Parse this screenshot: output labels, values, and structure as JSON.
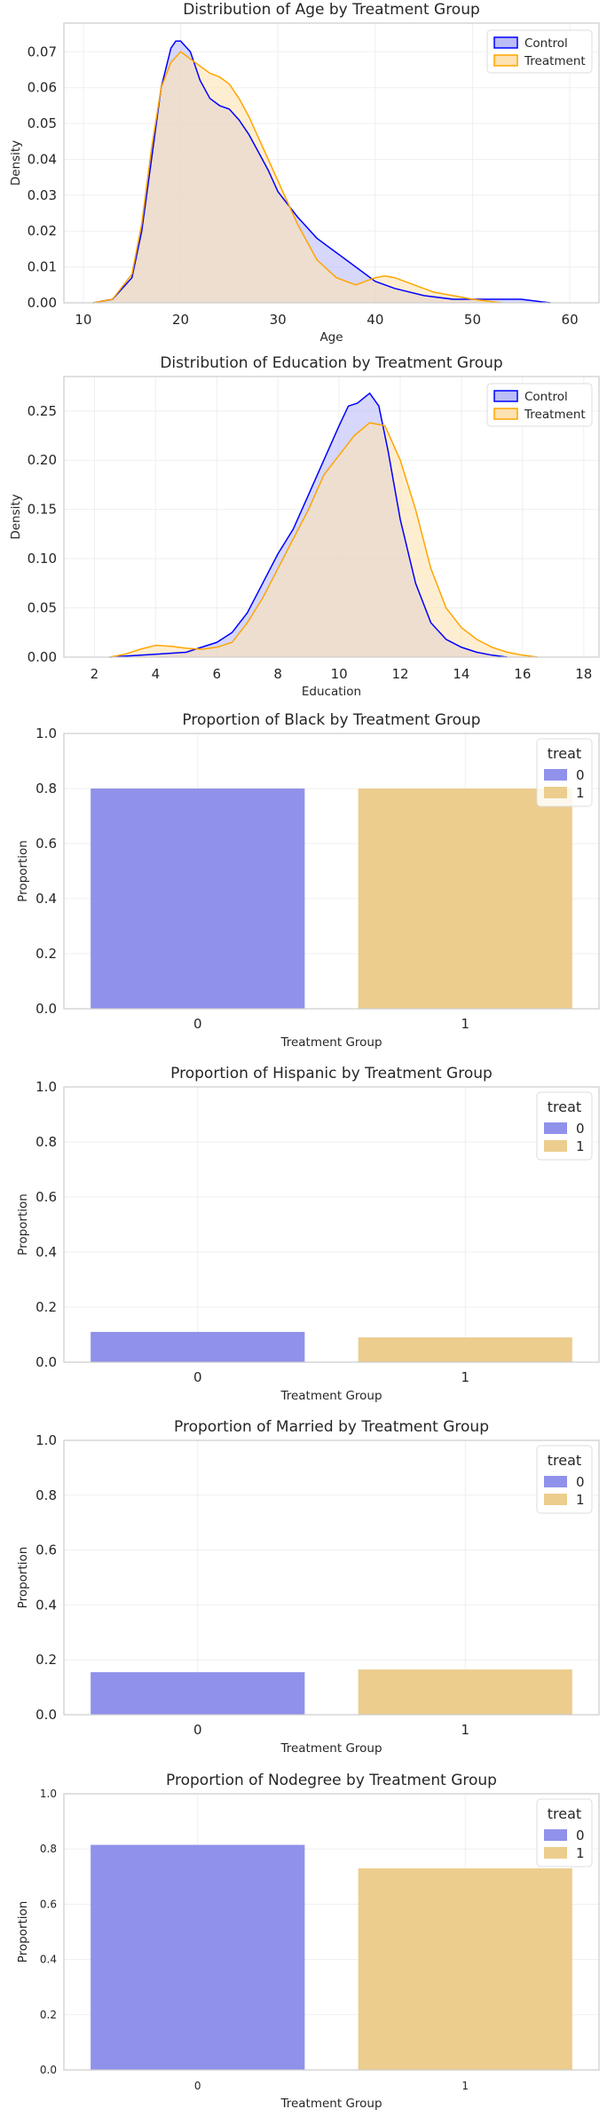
{
  "chart_data": [
    {
      "type": "area",
      "title": "Distribution of Age by Treatment Group",
      "xlabel": "Age",
      "ylabel": "Density",
      "xlim": [
        8,
        63
      ],
      "ylim": [
        0,
        0.078
      ],
      "xticks": [
        10,
        20,
        30,
        40,
        50,
        60
      ],
      "yticks": [
        0.0,
        0.01,
        0.02,
        0.03,
        0.04,
        0.05,
        0.06,
        0.07
      ],
      "xtick_labels": [
        "10",
        "20",
        "30",
        "40",
        "50",
        "60"
      ],
      "ytick_labels": [
        "0.00",
        "0.01",
        "0.02",
        "0.03",
        "0.04",
        "0.05",
        "0.06",
        "0.07"
      ],
      "legend": {
        "placement": "top-right",
        "entries": [
          "Control",
          "Treatment"
        ]
      },
      "series": [
        {
          "name": "Control",
          "color": "#0000ff",
          "fill": "#bbbdf6",
          "x": [
            11,
            13,
            15,
            16,
            17,
            18,
            19,
            19.5,
            20,
            21,
            22,
            23,
            24,
            25,
            26,
            27,
            28,
            29,
            30,
            32,
            34,
            36,
            38,
            40,
            42,
            45,
            48,
            50,
            52,
            55,
            57,
            58
          ],
          "y": [
            0,
            0.001,
            0.007,
            0.02,
            0.04,
            0.06,
            0.071,
            0.073,
            0.073,
            0.07,
            0.062,
            0.057,
            0.055,
            0.054,
            0.051,
            0.047,
            0.042,
            0.037,
            0.031,
            0.024,
            0.018,
            0.014,
            0.01,
            0.006,
            0.004,
            0.002,
            0.001,
            0.001,
            0.001,
            0.001,
            0.0003,
            0
          ]
        },
        {
          "name": "Treatment",
          "color": "#ffa500",
          "fill": "#fde2b2",
          "x": [
            11,
            13,
            15,
            16,
            17,
            18,
            19,
            20,
            21,
            22,
            23,
            24,
            25,
            26,
            27,
            28,
            30,
            32,
            34,
            36,
            38,
            40,
            41,
            42,
            44,
            46,
            48,
            50,
            52,
            53
          ],
          "y": [
            0,
            0.001,
            0.008,
            0.022,
            0.043,
            0.06,
            0.067,
            0.07,
            0.068,
            0.066,
            0.064,
            0.063,
            0.061,
            0.057,
            0.052,
            0.046,
            0.034,
            0.022,
            0.012,
            0.007,
            0.005,
            0.007,
            0.0075,
            0.007,
            0.005,
            0.003,
            0.002,
            0.001,
            0.0003,
            0
          ]
        }
      ]
    },
    {
      "type": "area",
      "title": "Distribution of Education by Treatment Group",
      "xlabel": "Education",
      "ylabel": "Density",
      "xlim": [
        1,
        18.5
      ],
      "ylim": [
        0,
        0.285
      ],
      "xticks": [
        2,
        4,
        6,
        8,
        10,
        12,
        14,
        16,
        18
      ],
      "yticks": [
        0.0,
        0.05,
        0.1,
        0.15,
        0.2,
        0.25
      ],
      "xtick_labels": [
        "2",
        "4",
        "6",
        "8",
        "10",
        "12",
        "14",
        "16",
        "18"
      ],
      "ytick_labels": [
        "0.00",
        "0.05",
        "0.10",
        "0.15",
        "0.20",
        "0.25"
      ],
      "legend": {
        "placement": "top-right",
        "entries": [
          "Control",
          "Treatment"
        ]
      },
      "series": [
        {
          "name": "Control",
          "color": "#0000ff",
          "fill": "#bbbdf6",
          "x": [
            2.5,
            3,
            4,
            5,
            5.5,
            6,
            6.5,
            7,
            7.5,
            8,
            8.5,
            9,
            9.5,
            10,
            10.3,
            10.6,
            11,
            11.3,
            11.6,
            12,
            12.5,
            13,
            13.5,
            14,
            14.5,
            15,
            15.5
          ],
          "y": [
            0,
            0.001,
            0.003,
            0.005,
            0.01,
            0.015,
            0.025,
            0.045,
            0.075,
            0.105,
            0.13,
            0.165,
            0.2,
            0.235,
            0.255,
            0.258,
            0.268,
            0.255,
            0.21,
            0.14,
            0.075,
            0.035,
            0.018,
            0.01,
            0.005,
            0.002,
            0
          ]
        },
        {
          "name": "Treatment",
          "color": "#ffa500",
          "fill": "#fde2b2",
          "x": [
            2.5,
            3,
            3.5,
            4,
            4.5,
            5,
            5.5,
            6,
            6.5,
            7,
            7.5,
            8,
            8.5,
            9,
            9.5,
            10,
            10.5,
            11,
            11.5,
            12,
            12.5,
            13,
            13.5,
            14,
            14.5,
            15,
            15.5,
            16,
            16.5
          ],
          "y": [
            0,
            0.003,
            0.008,
            0.012,
            0.011,
            0.009,
            0.008,
            0.01,
            0.015,
            0.035,
            0.06,
            0.09,
            0.12,
            0.15,
            0.185,
            0.205,
            0.225,
            0.238,
            0.235,
            0.2,
            0.15,
            0.09,
            0.05,
            0.03,
            0.018,
            0.01,
            0.005,
            0.002,
            0
          ]
        }
      ]
    },
    {
      "type": "bar",
      "title": "Proportion of Black by Treatment Group",
      "xlabel": "Treatment Group",
      "ylabel": "Proportion",
      "categories": [
        "0",
        "1"
      ],
      "values": [
        0.8,
        0.8
      ],
      "colors": [
        "#9091ea",
        "#eccd8e"
      ],
      "ylim": [
        0,
        1.0
      ],
      "yticks": [
        0.0,
        0.2,
        0.4,
        0.6,
        0.8,
        1.0
      ],
      "ytick_labels": [
        "0.0",
        "0.2",
        "0.4",
        "0.6",
        "0.8",
        "1.0"
      ],
      "legend": {
        "placement": "top-right",
        "title": "treat",
        "entries": [
          "0",
          "1"
        ]
      }
    },
    {
      "type": "bar",
      "title": "Proportion of Hispanic by Treatment Group",
      "xlabel": "Treatment Group",
      "ylabel": "Proportion",
      "categories": [
        "0",
        "1"
      ],
      "values": [
        0.11,
        0.09
      ],
      "colors": [
        "#9091ea",
        "#eccd8e"
      ],
      "ylim": [
        0,
        1.0
      ],
      "yticks": [
        0.0,
        0.2,
        0.4,
        0.6,
        0.8,
        1.0
      ],
      "ytick_labels": [
        "0.0",
        "0.2",
        "0.4",
        "0.6",
        "0.8",
        "1.0"
      ],
      "legend": {
        "placement": "top-right",
        "title": "treat",
        "entries": [
          "0",
          "1"
        ]
      }
    },
    {
      "type": "bar",
      "title": "Proportion of Married by Treatment Group",
      "xlabel": "Treatment Group",
      "ylabel": "Proportion",
      "categories": [
        "0",
        "1"
      ],
      "values": [
        0.155,
        0.165
      ],
      "colors": [
        "#9091ea",
        "#eccd8e"
      ],
      "ylim": [
        0,
        1.0
      ],
      "yticks": [
        0.0,
        0.2,
        0.4,
        0.6,
        0.8,
        1.0
      ],
      "ytick_labels": [
        "0.0",
        "0.2",
        "0.4",
        "0.6",
        "0.8",
        "1.0"
      ],
      "legend": {
        "placement": "top-right",
        "title": "treat",
        "entries": [
          "0",
          "1"
        ]
      }
    },
    {
      "type": "bar",
      "title": "Proportion of Nodegree by Treatment Group",
      "xlabel": "Treatment Group",
      "ylabel": "Proportion",
      "categories": [
        "0",
        "1"
      ],
      "values": [
        0.815,
        0.73
      ],
      "colors": [
        "#9091ea",
        "#eccd8e"
      ],
      "ylim": [
        0,
        1.0
      ],
      "yticks": [
        0.0,
        0.2,
        0.4,
        0.6,
        0.8,
        1.0
      ],
      "ytick_labels": [
        "0.0",
        "0.2",
        "0.4",
        "0.6",
        "0.8",
        "1.0"
      ],
      "legend": {
        "placement": "top-right",
        "title": "treat",
        "entries": [
          "0",
          "1"
        ]
      }
    }
  ]
}
